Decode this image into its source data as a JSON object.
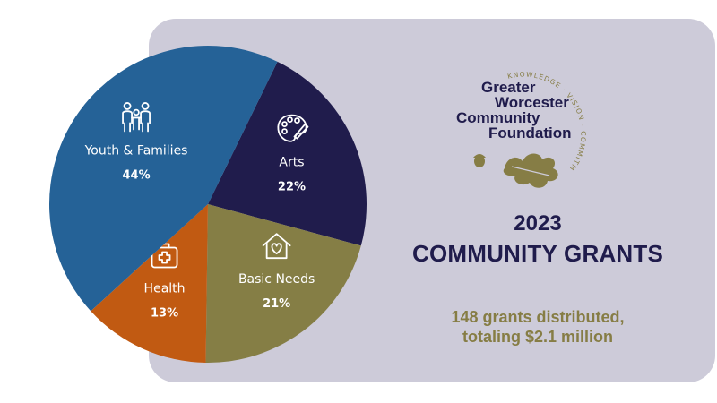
{
  "chart_data": {
    "type": "pie",
    "title": "2023 COMMUNITY GRANTS",
    "slices": [
      {
        "label": "Arts",
        "value": 22,
        "value_label": "22%",
        "color": "#201c4c",
        "icon": "palette-icon"
      },
      {
        "label": "Basic Needs",
        "value": 21,
        "value_label": "21%",
        "color": "#857e45",
        "icon": "house-heart-icon"
      },
      {
        "label": "Health",
        "value": 13,
        "value_label": "13%",
        "color": "#c15a12",
        "icon": "first-aid-kit-icon"
      },
      {
        "label": "Youth & Families",
        "value": 44,
        "value_label": "44%",
        "color": "#256297",
        "icon": "family-icon"
      }
    ]
  },
  "logo": {
    "lines": [
      "Greater",
      "Worcester",
      "Community",
      "Foundation"
    ],
    "motto": "KNOWLEDGE · VISION · COMMITMENT",
    "icon": "oak-leaf-acorn-icon"
  },
  "heading": {
    "year": "2023",
    "title": "COMMUNITY GRANTS"
  },
  "summary": {
    "line1": "148 grants distributed,",
    "line2": "totaling $2.1 million"
  },
  "colors": {
    "navy": "#201c4c",
    "olive": "#857e45",
    "panel": "#cdcbd9"
  }
}
